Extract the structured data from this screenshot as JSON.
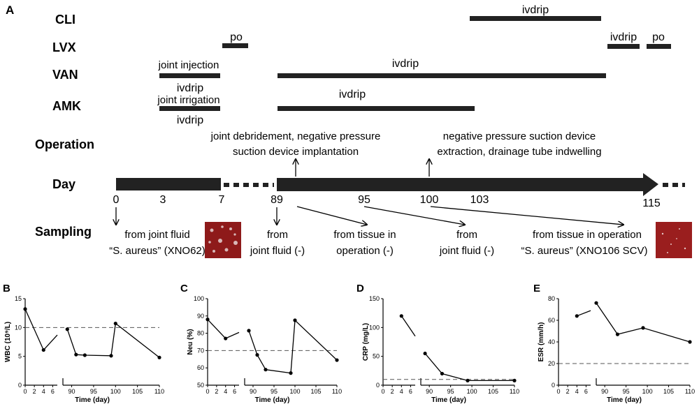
{
  "panel_a": {
    "label": "A",
    "rows": {
      "cli": "CLI",
      "lvx": "LVX",
      "van": "VAN",
      "amk": "AMK",
      "operation": "Operation",
      "day": "Day",
      "sampling": "Sampling"
    },
    "drugs": {
      "cli_ivdrip": "ivdrip",
      "lvx_po_1": "po",
      "lvx_ivdrip": "ivdrip",
      "lvx_po_2": "po",
      "van_joint_injection": "joint injection",
      "van_ivdrip_short": "ivdrip",
      "van_ivdrip_long": "ivdrip",
      "amk_joint_irrigation": "joint irrigation",
      "amk_ivdrip_short": "ivdrip",
      "amk_ivdrip_long": "ivdrip"
    },
    "operations": {
      "op1_line1": "joint debridement, negative pressure",
      "op1_line2": "suction device implantation",
      "op2_line1": "negative pressure suction device",
      "op2_line2": "extraction, drainage tube indwelling"
    },
    "day_ticks": [
      "0",
      "3",
      "7",
      "89",
      "95",
      "100",
      "103",
      "115"
    ],
    "sampling": {
      "s1_line1": "from joint fluid",
      "s1_line2": "“S. aureus” (XNO62)",
      "s2_line1": "from",
      "s2_line2": "joint fluid (-)",
      "s3_line1": "from tissue in",
      "s3_line2": "operation (-)",
      "s4_line1": "from",
      "s4_line2": "joint fluid (-)",
      "s5_line1": "from tissue in operation",
      "s5_line2": "“S. aureus” (XNO106 SCV)"
    },
    "colors": {
      "bar": "#222222",
      "culture_plate": "#8e1a1a",
      "colony": "#d8b8b8"
    }
  },
  "chart_data": [
    {
      "panel": "B",
      "type": "line",
      "ylabel": "WBC (10⁹/L)",
      "xlabel": "Time (day)",
      "xticks_left": [
        0,
        2,
        4,
        6
      ],
      "xticks_right": [
        90,
        95,
        100,
        105,
        110
      ],
      "yticks": [
        0,
        5,
        10,
        15
      ],
      "ylim": [
        0,
        15
      ],
      "reference": 10,
      "segments": [
        {
          "x": [
            0,
            4,
            7
          ],
          "y": [
            13.2,
            6.1,
            8.7
          ]
        },
        {
          "x": [
            89,
            91,
            93,
            99,
            100,
            110
          ],
          "y": [
            9.7,
            5.3,
            5.2,
            5.1,
            10.7,
            4.8
          ]
        }
      ]
    },
    {
      "panel": "C",
      "type": "line",
      "ylabel": "Neu (%)",
      "xlabel": "Time (day)",
      "xticks_left": [
        0,
        2,
        4,
        6
      ],
      "xticks_right": [
        90,
        95,
        100,
        105,
        110
      ],
      "yticks": [
        50,
        60,
        70,
        80,
        90,
        100
      ],
      "ylim": [
        50,
        100
      ],
      "reference": 70,
      "segments": [
        {
          "x": [
            0,
            4,
            7
          ],
          "y": [
            88,
            77,
            80.5
          ]
        },
        {
          "x": [
            89,
            91,
            93,
            99,
            100,
            110
          ],
          "y": [
            81.5,
            67.5,
            59,
            57,
            87.5,
            64.5
          ]
        }
      ]
    },
    {
      "panel": "D",
      "type": "line",
      "ylabel": "CRP (mg/L)",
      "xlabel": "Time (day)",
      "xticks_left": [
        0,
        2,
        4,
        6
      ],
      "xticks_right": [
        90,
        95,
        100,
        105,
        110
      ],
      "yticks": [
        0,
        50,
        100,
        150
      ],
      "ylim": [
        0,
        150
      ],
      "reference": 10,
      "segments": [
        {
          "x": [
            4,
            7
          ],
          "y": [
            120,
            85
          ]
        },
        {
          "x": [
            89,
            93,
            99,
            110
          ],
          "y": [
            55,
            20,
            8,
            8
          ]
        }
      ]
    },
    {
      "panel": "E",
      "type": "line",
      "ylabel": "ESR (mm/h)",
      "xlabel": "Time (day)",
      "xticks_left": [
        0,
        2,
        4,
        6
      ],
      "xticks_right": [
        90,
        95,
        100,
        105,
        110
      ],
      "yticks": [
        0,
        20,
        40,
        60,
        80
      ],
      "ylim": [
        0,
        80
      ],
      "reference": 20,
      "segments": [
        {
          "x": [
            4,
            7
          ],
          "y": [
            64,
            69
          ]
        },
        {
          "x": [
            88,
            93,
            99,
            110
          ],
          "y": [
            76,
            47,
            53,
            40
          ]
        }
      ]
    }
  ]
}
